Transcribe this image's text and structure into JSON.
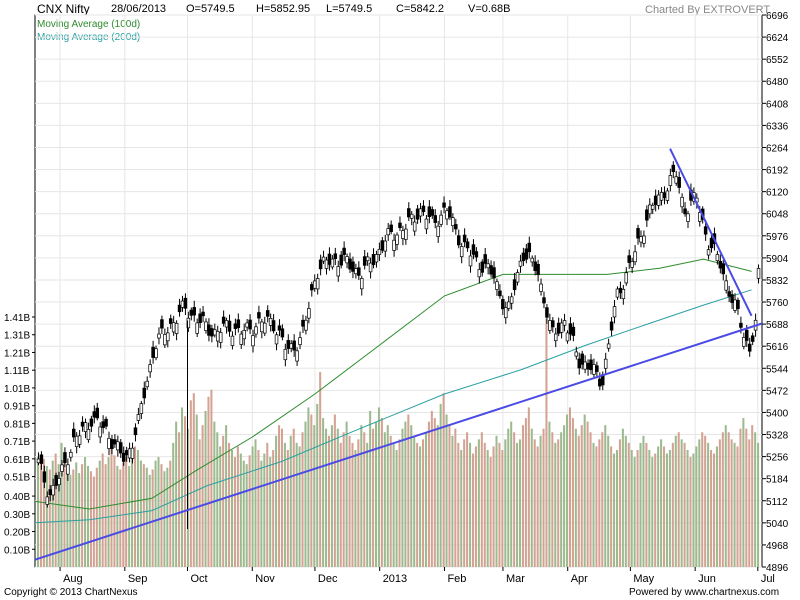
{
  "header": {
    "title": "CNX Nifty",
    "date": "28/06/2013",
    "open": "O=5749.5",
    "high": "H=5852.95",
    "low": "L=5749.5",
    "close": "C=5842.2",
    "volume": "V=0.68B",
    "credit": "Charted By EXTROVERT"
  },
  "legend": {
    "ma100": "Moving Average (100d)",
    "ma200": "Moving Average (200d)"
  },
  "footer": {
    "copyright": "Copyright © 2013 ChartNexus",
    "powered": "Powered by www.chartnexus.com"
  },
  "colors": {
    "up_volume": "#9dba8f",
    "down_volume": "#d4a292",
    "ma100": "#2e8b2e",
    "ma200": "#2aa0a0",
    "trendline": "#4a4ae6",
    "candle": "#000000",
    "grid": "#e6e6e6"
  },
  "chart_data": {
    "type": "candlestick",
    "price_axis": {
      "side": "right",
      "range": [
        4896,
        6696
      ],
      "ticks": [
        "6696",
        "6624",
        "6552",
        "6480",
        "6408",
        "6336",
        "6264",
        "6192",
        "6120",
        "6048",
        "5976",
        "5904",
        "5832",
        "5760",
        "5688",
        "5616",
        "5544",
        "5472",
        "5400",
        "5328",
        "5256",
        "5184",
        "5112",
        "5040",
        "4968",
        "4896"
      ]
    },
    "volume_axis": {
      "side": "left",
      "unit": "B",
      "range": [
        0,
        1.41
      ],
      "ticks": [
        "1.41B",
        "1.31B",
        "1.21B",
        "1.11B",
        "1.01B",
        "0.91B",
        "0.81B",
        "0.71B",
        "0.61B",
        "0.51B",
        "0.40B",
        "0.30B",
        "0.20B",
        "0.10B"
      ]
    },
    "x_axis": {
      "labels": [
        "Aug",
        "Sep",
        "Oct",
        "Nov",
        "Dec",
        "2013",
        "Feb",
        "Mar",
        "Apr",
        "May",
        "Jun",
        "Jul"
      ]
    },
    "price_path": [
      [
        "2012-07-20",
        5250
      ],
      [
        "2012-07-26",
        5130
      ],
      [
        "2012-07-31",
        5190
      ],
      [
        "2012-08-06",
        5300
      ],
      [
        "2012-08-15",
        5380
      ],
      [
        "2012-08-22",
        5340
      ],
      [
        "2012-08-31",
        5240
      ],
      [
        "2012-09-06",
        5360
      ],
      [
        "2012-09-14",
        5620
      ],
      [
        "2012-09-21",
        5680
      ],
      [
        "2012-09-28",
        5740
      ],
      [
        "2012-10-05",
        5700
      ],
      [
        "2012-10-12",
        5660
      ],
      [
        "2012-10-19",
        5680
      ],
      [
        "2012-10-26",
        5660
      ],
      [
        "2012-11-02",
        5690
      ],
      [
        "2012-11-09",
        5700
      ],
      [
        "2012-11-16",
        5600
      ],
      [
        "2012-11-23",
        5640
      ],
      [
        "2012-11-30",
        5860
      ],
      [
        "2012-12-07",
        5900
      ],
      [
        "2012-12-14",
        5890
      ],
      [
        "2012-12-21",
        5850
      ],
      [
        "2012-12-28",
        5910
      ],
      [
        "2013-01-04",
        5980
      ],
      [
        "2013-01-11",
        6000
      ],
      [
        "2013-01-18",
        6060
      ],
      [
        "2013-01-24",
        6020
      ],
      [
        "2013-01-31",
        6060
      ],
      [
        "2013-02-08",
        5940
      ],
      [
        "2013-02-15",
        5890
      ],
      [
        "2013-02-22",
        5850
      ],
      [
        "2013-03-01",
        5720
      ],
      [
        "2013-03-08",
        5920
      ],
      [
        "2013-03-15",
        5870
      ],
      [
        "2013-03-22",
        5650
      ],
      [
        "2013-03-28",
        5700
      ],
      [
        "2013-04-04",
        5570
      ],
      [
        "2013-04-10",
        5540
      ],
      [
        "2013-04-15",
        5500
      ],
      [
        "2013-04-22",
        5780
      ],
      [
        "2013-04-30",
        5910
      ],
      [
        "2013-05-07",
        6050
      ],
      [
        "2013-05-14",
        6120
      ],
      [
        "2013-05-20",
        6180
      ],
      [
        "2013-05-24",
        6060
      ],
      [
        "2013-05-30",
        6100
      ],
      [
        "2013-06-04",
        5960
      ],
      [
        "2013-06-10",
        5890
      ],
      [
        "2013-06-14",
        5800
      ],
      [
        "2013-06-20",
        5690
      ],
      [
        "2013-06-24",
        5600
      ],
      [
        "2013-06-27",
        5690
      ],
      [
        "2013-06-28",
        5842
      ]
    ],
    "ma100_path": [
      [
        "2012-07-20",
        5110
      ],
      [
        "2012-08-15",
        5085
      ],
      [
        "2012-09-14",
        5120
      ],
      [
        "2012-10-05",
        5210
      ],
      [
        "2012-11-01",
        5320
      ],
      [
        "2012-12-01",
        5460
      ],
      [
        "2013-01-01",
        5620
      ],
      [
        "2013-02-01",
        5780
      ],
      [
        "2013-03-01",
        5850
      ],
      [
        "2013-03-25",
        5850
      ],
      [
        "2013-04-20",
        5850
      ],
      [
        "2013-05-15",
        5870
      ],
      [
        "2013-06-05",
        5900
      ],
      [
        "2013-06-28",
        5860
      ]
    ],
    "ma200_path": [
      [
        "2012-07-20",
        5040
      ],
      [
        "2012-08-15",
        5050
      ],
      [
        "2012-09-14",
        5080
      ],
      [
        "2012-10-10",
        5160
      ],
      [
        "2012-11-15",
        5240
      ],
      [
        "2012-12-20",
        5340
      ],
      [
        "2013-02-01",
        5460
      ],
      [
        "2013-03-10",
        5540
      ],
      [
        "2013-04-10",
        5620
      ],
      [
        "2013-05-10",
        5690
      ],
      [
        "2013-06-05",
        5750
      ],
      [
        "2013-06-28",
        5800
      ]
    ],
    "trendlines": [
      {
        "from": [
          "2012-07-20",
          4920
        ],
        "to": [
          "2013-07-03",
          5690
        ]
      },
      {
        "from": [
          "2013-05-20",
          6260
        ],
        "to": [
          "2013-06-28",
          5715
        ]
      }
    ],
    "volume": [
      0.62,
      0.58,
      0.61,
      0.57,
      0.55,
      0.6,
      0.64,
      0.58,
      0.7,
      0.62,
      0.56,
      0.52,
      0.55,
      0.59,
      0.53,
      0.58,
      0.62,
      0.57,
      0.54,
      0.51,
      0.56,
      0.6,
      0.64,
      0.58,
      0.62,
      0.68,
      0.63,
      0.57,
      0.55,
      0.59,
      0.62,
      0.57,
      0.64,
      0.68,
      0.66,
      0.6,
      0.58,
      0.56,
      0.52,
      0.55,
      0.6,
      0.62,
      0.58,
      0.54,
      0.56,
      0.6,
      0.7,
      0.82,
      0.76,
      0.9,
      0.85,
      0.78,
      0.94,
      0.98,
      0.86,
      0.72,
      0.8,
      0.88,
      0.96,
      1.0,
      0.82,
      0.76,
      0.68,
      0.74,
      0.8,
      0.7,
      0.66,
      0.62,
      0.68,
      0.64,
      0.6,
      0.58,
      0.63,
      0.68,
      0.72,
      0.66,
      0.6,
      0.64,
      0.7,
      0.62,
      0.66,
      0.74,
      0.8,
      0.78,
      0.7,
      0.66,
      0.74,
      0.78,
      0.7,
      0.68,
      0.76,
      0.82,
      0.9,
      0.86,
      0.8,
      0.92,
      1.1,
      0.84,
      0.78,
      0.74,
      0.8,
      0.86,
      0.78,
      0.7,
      0.76,
      0.82,
      0.74,
      0.7,
      0.66,
      0.72,
      0.8,
      0.76,
      0.7,
      0.88,
      0.78,
      0.82,
      0.9,
      0.84,
      0.76,
      0.8,
      0.74,
      0.7,
      0.66,
      0.72,
      0.78,
      0.82,
      0.86,
      0.8,
      0.74,
      0.7,
      0.68,
      0.72,
      0.76,
      0.82,
      0.88,
      0.84,
      0.8,
      0.92,
      0.98,
      0.86,
      0.8,
      0.74,
      0.78,
      0.7,
      0.66,
      0.72,
      0.76,
      0.7,
      0.64,
      0.68,
      0.72,
      0.76,
      0.7,
      0.66,
      0.62,
      0.68,
      0.74,
      0.7,
      0.66,
      0.72,
      0.78,
      0.82,
      0.76,
      0.7,
      0.72,
      0.8,
      0.84,
      0.9,
      0.78,
      0.72,
      0.68,
      0.74,
      0.78,
      1.4,
      0.82,
      0.76,
      0.7,
      0.72,
      0.76,
      0.8,
      0.86,
      0.9,
      0.84,
      0.78,
      0.74,
      0.8,
      0.86,
      0.82,
      0.76,
      0.7,
      0.68,
      0.72,
      0.76,
      0.8,
      0.74,
      0.68,
      0.64,
      0.66,
      0.72,
      0.78,
      0.74,
      0.7,
      0.66,
      0.62,
      0.66,
      0.7,
      0.74,
      0.7,
      0.66,
      0.62,
      0.64,
      0.68,
      0.72,
      0.68,
      0.64,
      0.66,
      0.7,
      0.74,
      0.76,
      0.72,
      0.7,
      0.66,
      0.62,
      0.64,
      0.68,
      0.72,
      0.76,
      0.74,
      0.7,
      0.66,
      0.64,
      0.68,
      0.72,
      0.76,
      0.8,
      0.76,
      0.72,
      0.7,
      0.68,
      0.78,
      0.84,
      0.78,
      0.72,
      0.8,
      0.76,
      0.7
    ]
  }
}
